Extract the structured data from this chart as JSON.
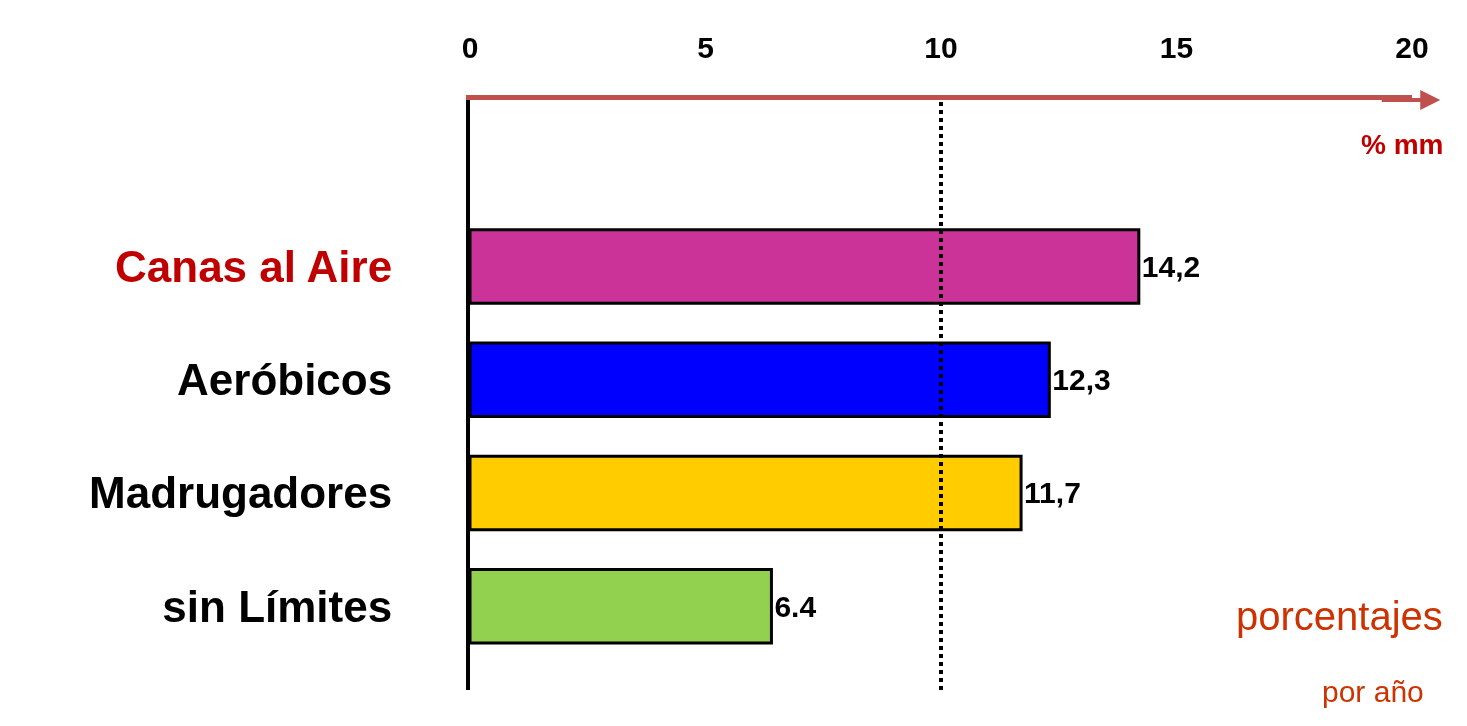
{
  "chart_data": {
    "type": "bar",
    "orientation": "horizontal",
    "categories": [
      "Canas al Aire",
      "Aeróbicos",
      "Madrugadores",
      "sin Límites"
    ],
    "values": [
      14.2,
      12.3,
      11.7,
      6.4
    ],
    "colors": [
      "#cc3399",
      "#0000ff",
      "#ffcc00",
      "#92d050"
    ],
    "value_labels": [
      "14,2",
      "12,3",
      "11,7",
      "6.4"
    ],
    "xlim": [
      0,
      20
    ],
    "xticks": [
      0,
      5,
      10,
      15,
      20
    ],
    "xlabel": "% mm",
    "ref_lines": [
      {
        "axis": "x",
        "value": 10,
        "color": "#000000",
        "line_style": "dotted"
      }
    ],
    "annotations": [
      "porcentajes",
      "por año"
    ],
    "legend": false
  }
}
